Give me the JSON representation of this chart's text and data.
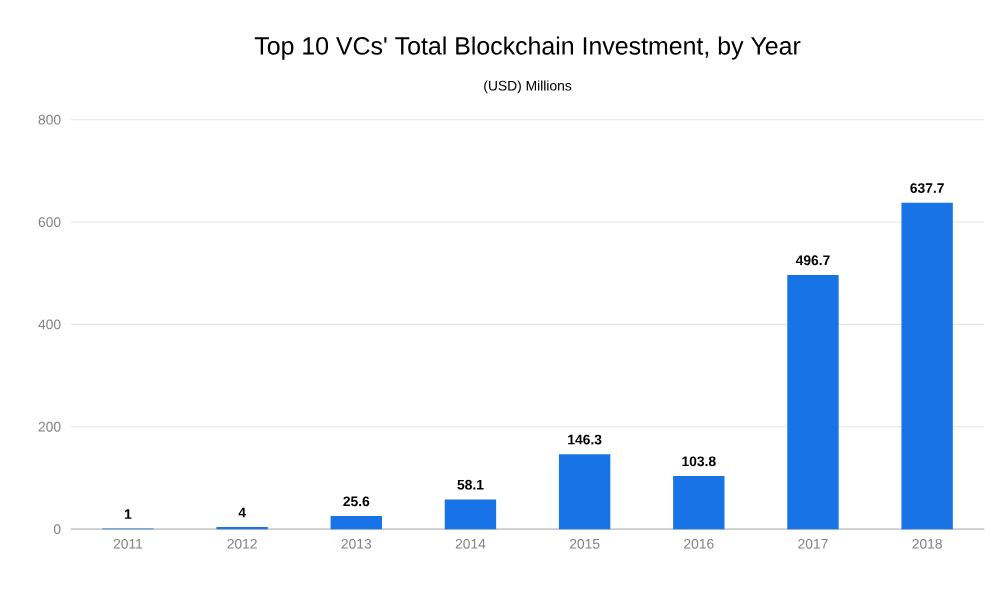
{
  "chart_data": {
    "type": "bar",
    "title": "Top 10 VCs' Total Blockchain Investment, by Year",
    "subtitle": "(USD) Millions",
    "categories": [
      "2011",
      "2012",
      "2013",
      "2014",
      "2015",
      "2016",
      "2017",
      "2018"
    ],
    "values": [
      1,
      4,
      25.6,
      58.1,
      146.3,
      103.8,
      496.7,
      637.7
    ],
    "color": "#1874e6",
    "ylim": [
      0,
      800
    ],
    "yticks": [
      0,
      200,
      400,
      600,
      800
    ],
    "grid": "y",
    "data_labels": true
  }
}
